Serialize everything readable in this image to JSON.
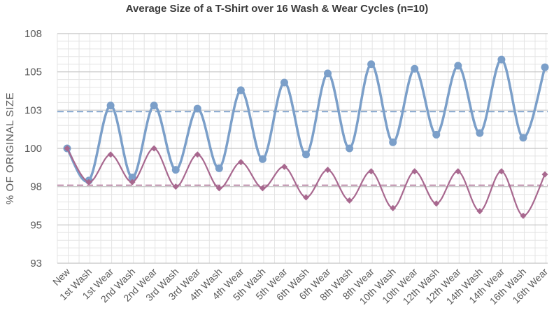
{
  "chart_data": {
    "type": "line",
    "title": "Average Size of a T-Shirt over 16 Wash & Wear Cycles (n=10)",
    "xlabel": "",
    "ylabel": "% OF ORIGINAL SIZE",
    "ylim": [
      92.5,
      107.5
    ],
    "yticks": [
      92.5,
      95,
      97.5,
      100,
      102.5,
      105,
      107.5
    ],
    "ytick_labels": [
      "93",
      "95",
      "98",
      "100",
      "103",
      "105",
      "108"
    ],
    "grid": true,
    "legend": "none",
    "categories": [
      "New",
      "1st Wash",
      "1st Wear",
      "2nd Wash",
      "2nd Wear",
      "3rd Wash",
      "3rd Wear",
      "4th Wash",
      "4th Wear",
      "5th Wash",
      "5th Wear",
      "6th Wash",
      "6th Wear",
      "8th Wash",
      "8th Wear",
      "10th Wash",
      "10th Wear",
      "12th Wash",
      "12th Wear",
      "14th Wash",
      "14th Wear",
      "16th Wash",
      "16th Wear"
    ],
    "x_positions": [
      0,
      1,
      2,
      3,
      4,
      5,
      6,
      7,
      8,
      9,
      10,
      11,
      12,
      13,
      14,
      15,
      16,
      17,
      18,
      19,
      20,
      21,
      22
    ],
    "series": [
      {
        "color": "#7b9fc9",
        "marker": "circle",
        "x": [
          0,
          1,
          2,
          3,
          4,
          5,
          6,
          7,
          8,
          9,
          10,
          11,
          12,
          13,
          14,
          15,
          16,
          17,
          18,
          19,
          20,
          21,
          22
        ],
        "values": [
          100,
          97.9,
          102.8,
          98.1,
          102.8,
          98.6,
          102.6,
          98.7,
          103.8,
          99.3,
          104.3,
          99.6,
          104.9,
          100,
          105.5,
          100.4,
          105.2,
          100.9,
          105.4,
          101,
          105.8,
          100.7,
          105.3
        ]
      },
      {
        "color": "#a8688f",
        "marker": "diamond",
        "x": [
          0,
          1,
          2,
          3,
          4,
          5,
          6,
          7,
          8,
          9,
          10,
          11,
          12,
          13,
          14,
          15,
          16,
          17,
          18,
          19,
          20,
          21,
          22
        ],
        "values": [
          100,
          97.8,
          99.6,
          97.8,
          100,
          97.5,
          99.6,
          97.4,
          99.1,
          97.4,
          98.8,
          96.8,
          98.6,
          96.6,
          98.5,
          96.1,
          98.5,
          96.4,
          98.5,
          95.9,
          98.5,
          95.6,
          98.3
        ]
      }
    ],
    "reference_lines": [
      {
        "axis": "y",
        "value": 102.4,
        "color": "#7b9fc9",
        "style": "dashed"
      },
      {
        "axis": "y",
        "value": 97.6,
        "color": "#a8688f",
        "style": "dashed"
      }
    ]
  }
}
